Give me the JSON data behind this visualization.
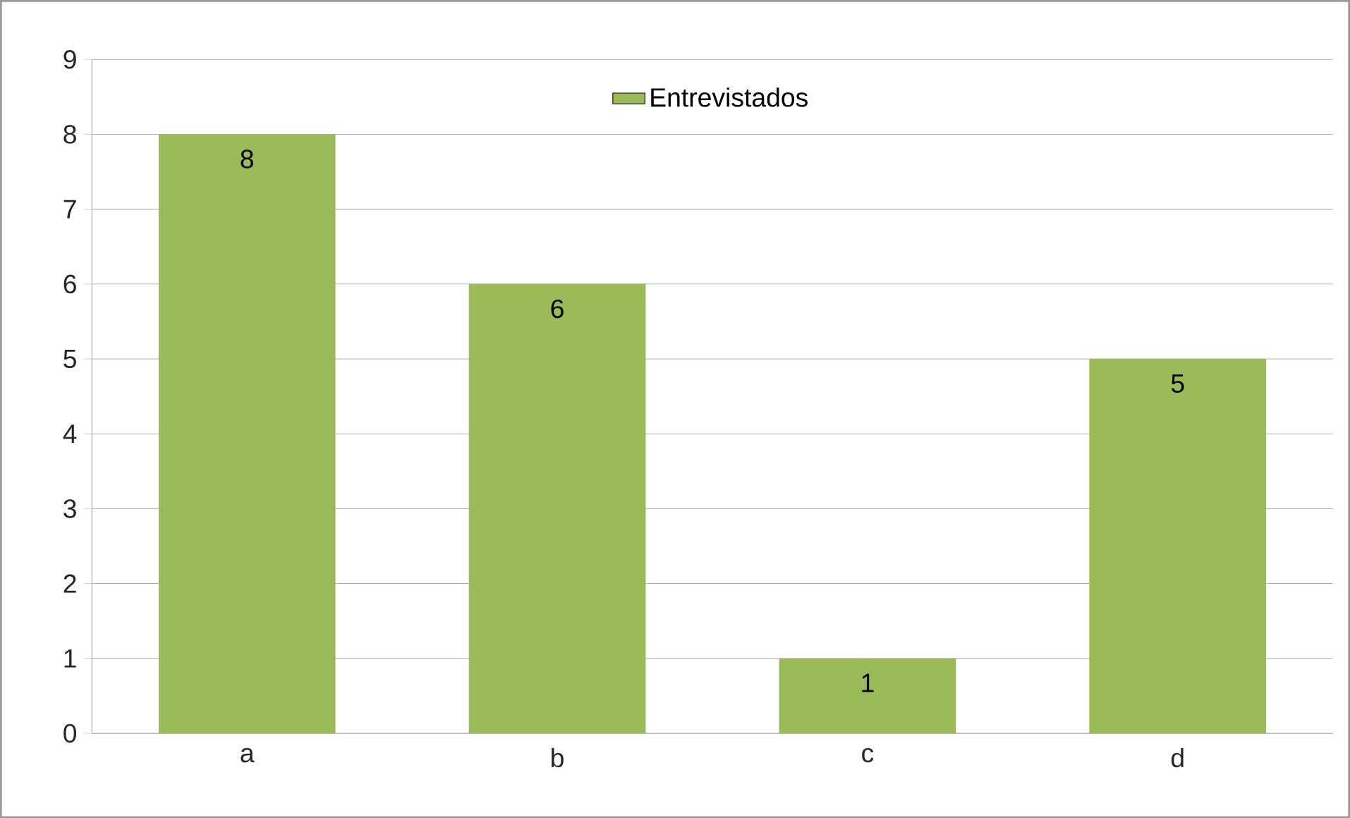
{
  "chart_data": {
    "type": "bar",
    "categories": [
      "a",
      "b",
      "c",
      "d"
    ],
    "series": [
      {
        "name": "Entrevistados",
        "color": "#9bbb59",
        "values": [
          8,
          6,
          1,
          5
        ]
      }
    ],
    "ylim": [
      0,
      9
    ],
    "yticks": [
      0,
      1,
      2,
      3,
      4,
      5,
      6,
      7,
      8,
      9
    ],
    "grid": "y",
    "legend": "top",
    "data_labels": true
  }
}
